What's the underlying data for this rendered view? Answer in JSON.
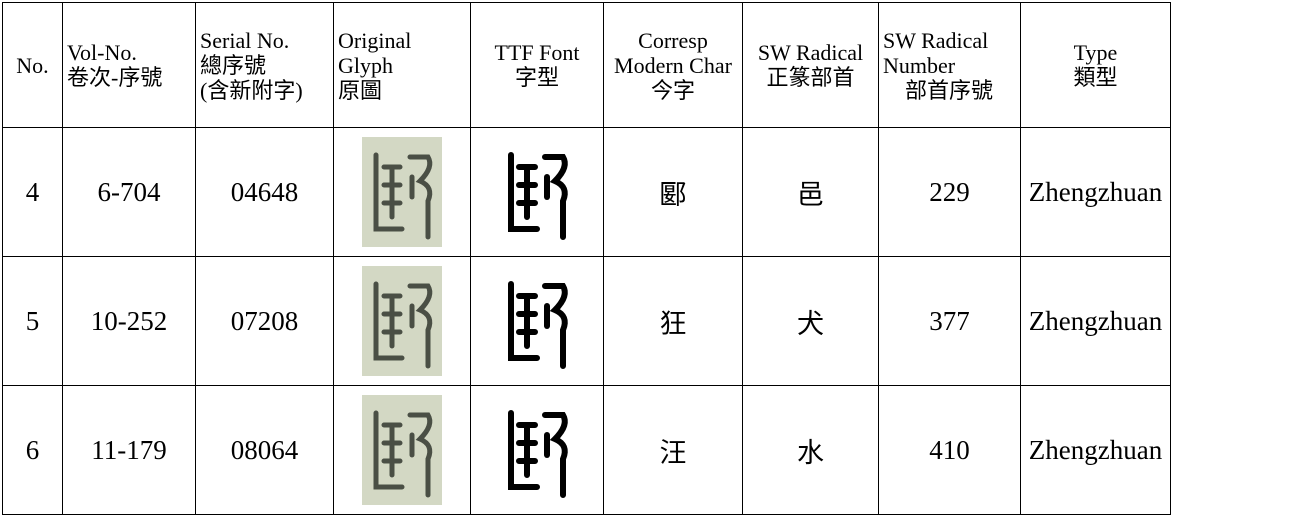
{
  "table": {
    "header": [
      [
        "No."
      ],
      [
        "Vol-No.",
        "卷次-序號"
      ],
      [
        "Serial No.",
        "總序號",
        "(含新附字)"
      ],
      [
        "Original",
        "Glyph",
        "原圖"
      ],
      [
        "TTF Font",
        "字型"
      ],
      [
        "Corresp",
        "Modern Char",
        "今字"
      ],
      [
        "SW Radical",
        "正篆部首"
      ],
      [
        "SW Radical",
        "Number",
        "部首序號"
      ],
      [
        "Type",
        "類型"
      ]
    ],
    "rows": [
      [
        "4",
        "6-704",
        "04648",
        "郾",
        "邑",
        "229",
        "Zhengzhuan"
      ],
      [
        "5",
        "10-252",
        "07208",
        "狂",
        "犬",
        "377",
        "Zhengzhuan"
      ],
      [
        "6",
        "11-179",
        "08064",
        "汪",
        "水",
        "410",
        "Zhengzhuan"
      ]
    ]
  }
}
